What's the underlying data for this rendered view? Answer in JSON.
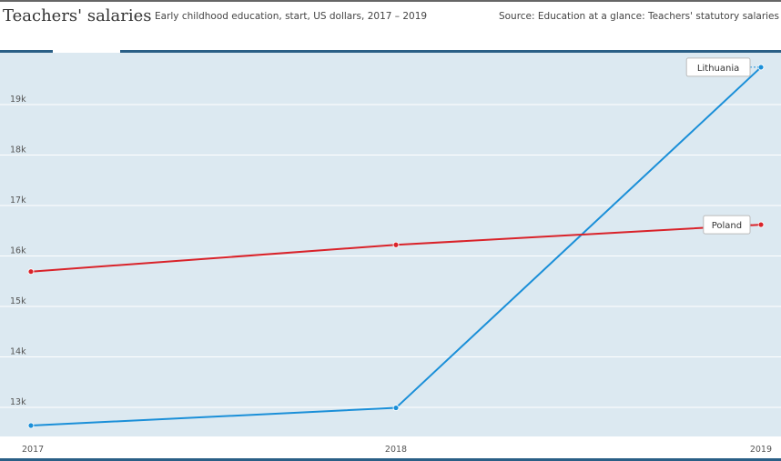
{
  "header": {
    "title": "Teachers' salaries",
    "subtitle": "Early childhood education, start, US dollars, 2017 – 2019",
    "source": "Source: Education at a glance: Teachers' statutory salaries"
  },
  "colors": {
    "plot_background": "#dce9f1",
    "lithuania": "#1a8fd8",
    "poland": "#d9232a",
    "frame": "#2a5f86"
  },
  "chart_data": {
    "type": "line",
    "title": "Teachers' salaries",
    "xlabel": "",
    "ylabel": "",
    "x": [
      2017,
      2018,
      2019
    ],
    "x_tick_labels": [
      "2017",
      "2018",
      "2019"
    ],
    "ylim": [
      12500,
      20300
    ],
    "y_ticks": [
      13000,
      14000,
      15000,
      16000,
      17000,
      18000,
      19000
    ],
    "y_tick_labels": [
      "13k",
      "14k",
      "15k",
      "16k",
      "17k",
      "18k",
      "19k"
    ],
    "grid": true,
    "legend": "inline labels at line ends",
    "series": [
      {
        "name": "Lithuania",
        "color": "#1a8fd8",
        "values": [
          12550,
          12900,
          19650
        ]
      },
      {
        "name": "Poland",
        "color": "#d9232a",
        "values": [
          15600,
          16130,
          16530
        ]
      }
    ]
  }
}
